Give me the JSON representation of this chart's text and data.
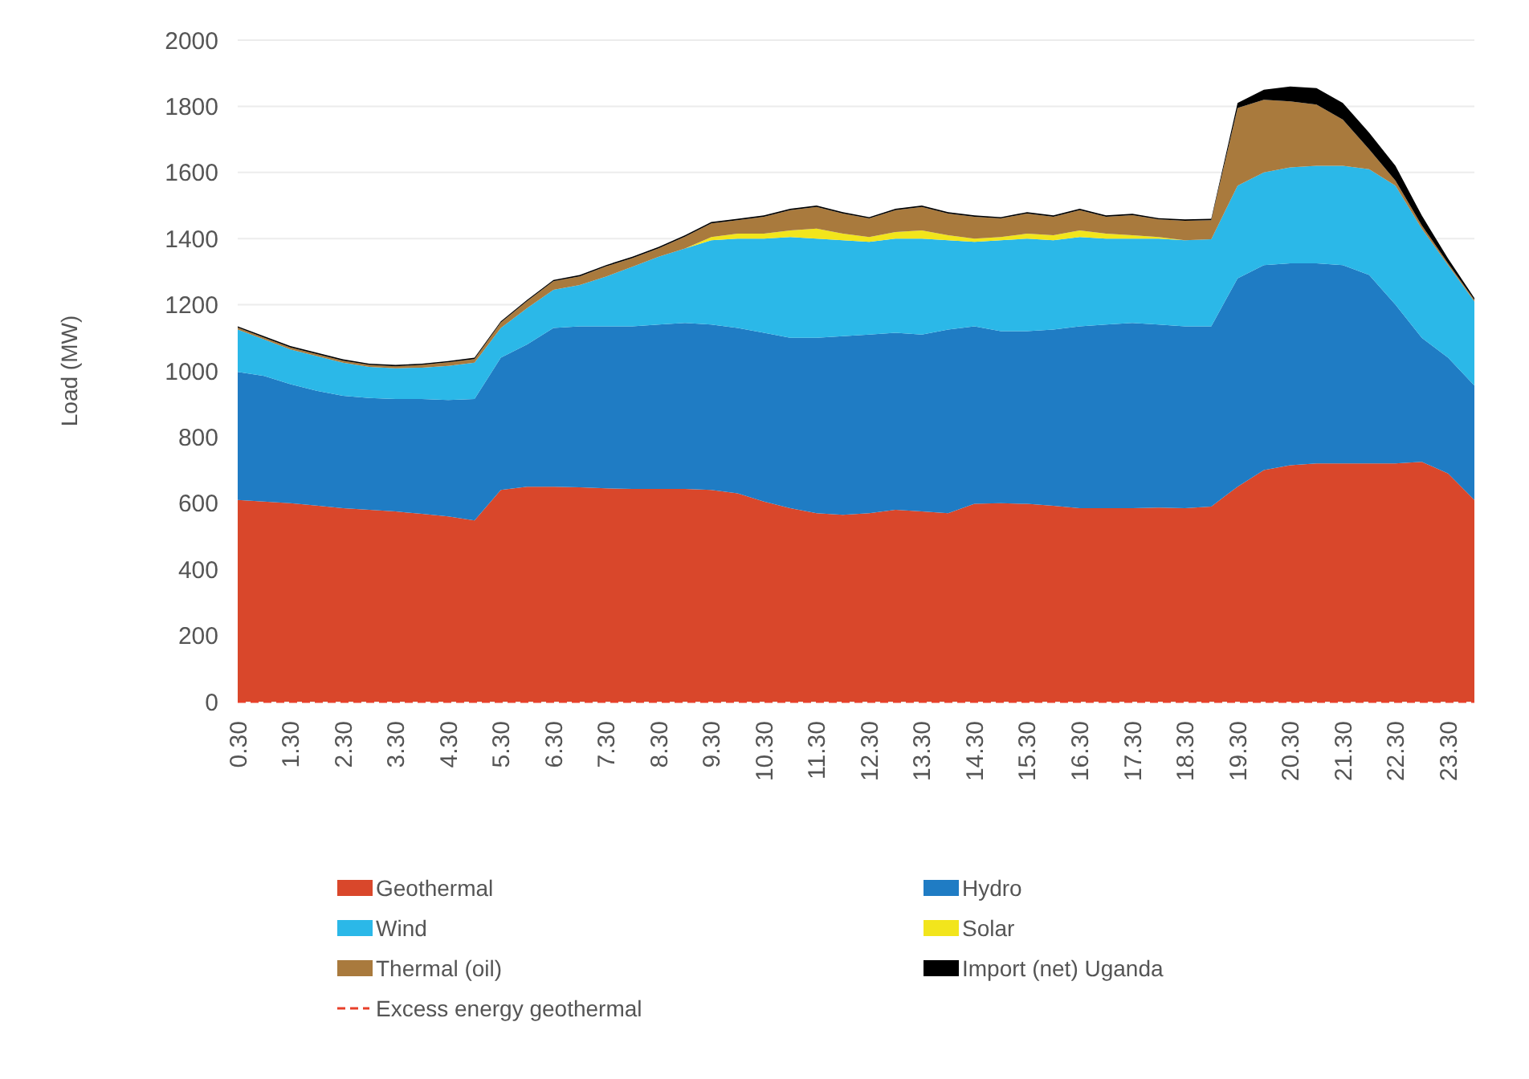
{
  "chart_data": {
    "type": "area",
    "stacked": true,
    "ylabel": "Load (MW)",
    "categories": [
      "0.30",
      null,
      "1.30",
      null,
      "2.30",
      null,
      "3.30",
      null,
      "4.30",
      null,
      "5.30",
      null,
      "6.30",
      null,
      "7.30",
      null,
      "8.30",
      null,
      "9.30",
      null,
      "10.30",
      null,
      "11.30",
      null,
      "12.30",
      null,
      "13.30",
      null,
      "14.30",
      null,
      "15.30",
      null,
      "16.30",
      null,
      "17.30",
      null,
      "18.30",
      null,
      "19.30",
      null,
      "20.30",
      null,
      "21.30",
      null,
      "22.30",
      null,
      "23.30",
      null
    ],
    "ylim": [
      0,
      2000
    ],
    "yticks": [
      0,
      200,
      400,
      600,
      800,
      1000,
      1200,
      1400,
      1600,
      1800,
      2000
    ],
    "grid": "y",
    "legend": "bottom",
    "series": [
      {
        "name": "Geothermal",
        "color": "#d9472b",
        "values": [
          610,
          605,
          600,
          593,
          585,
          580,
          575,
          568,
          560,
          548,
          640,
          650,
          650,
          648,
          645,
          643,
          643,
          643,
          640,
          630,
          605,
          585,
          570,
          565,
          570,
          580,
          575,
          570,
          598,
          600,
          598,
          592,
          585,
          585,
          585,
          587,
          585,
          590,
          650,
          700,
          715,
          720,
          720,
          720,
          720,
          725,
          690,
          610
        ]
      },
      {
        "name": "Hydro",
        "color": "#1f7cc4",
        "values": [
          387,
          380,
          360,
          347,
          340,
          338,
          340,
          347,
          352,
          367,
          400,
          430,
          480,
          487,
          490,
          492,
          497,
          502,
          500,
          500,
          510,
          515,
          530,
          540,
          540,
          535,
          535,
          555,
          537,
          520,
          522,
          533,
          550,
          555,
          560,
          553,
          550,
          545,
          630,
          620,
          610,
          605,
          600,
          570,
          480,
          375,
          350,
          346
        ]
      },
      {
        "name": "Wind",
        "color": "#2bb8e8",
        "values": [
          128,
          110,
          105,
          105,
          100,
          94,
          93,
          95,
          103,
          110,
          90,
          110,
          115,
          125,
          150,
          180,
          205,
          225,
          255,
          270,
          285,
          305,
          300,
          290,
          280,
          285,
          290,
          270,
          255,
          275,
          280,
          270,
          270,
          260,
          255,
          260,
          260,
          263,
          280,
          280,
          290,
          295,
          300,
          320,
          360,
          330,
          280,
          254
        ]
      },
      {
        "name": "Solar",
        "color": "#f2e51c",
        "values": [
          0,
          0,
          0,
          0,
          0,
          0,
          0,
          0,
          0,
          0,
          0,
          0,
          0,
          0,
          0,
          0,
          0,
          0,
          10,
          15,
          15,
          20,
          30,
          20,
          15,
          20,
          25,
          15,
          10,
          10,
          15,
          15,
          20,
          15,
          10,
          5,
          0,
          0,
          0,
          0,
          0,
          0,
          0,
          0,
          0,
          0,
          0,
          0
        ]
      },
      {
        "name": "Thermal (oil)",
        "color": "#a97a3d",
        "values": [
          6,
          6,
          6,
          6,
          6,
          6,
          6,
          8,
          11,
          11,
          16,
          21,
          26,
          26,
          31,
          26,
          26,
          36,
          41,
          41,
          51,
          61,
          66,
          61,
          56,
          66,
          71,
          66,
          66,
          56,
          61,
          56,
          61,
          51,
          61,
          53,
          59,
          58,
          235,
          220,
          200,
          185,
          140,
          60,
          15,
          10,
          5,
          5
        ]
      },
      {
        "name": "Import (net) Uganda",
        "color": "#000000",
        "values": [
          4,
          4,
          4,
          4,
          4,
          4,
          4,
          4,
          4,
          4,
          4,
          4,
          4,
          4,
          4,
          4,
          4,
          4,
          4,
          4,
          4,
          4,
          4,
          4,
          4,
          4,
          4,
          4,
          4,
          4,
          4,
          4,
          4,
          4,
          4,
          4,
          4,
          4,
          15,
          30,
          45,
          50,
          50,
          50,
          45,
          30,
          15,
          5
        ]
      },
      {
        "name": "Excess energy geothermal",
        "type": "line",
        "line_style": "dashed",
        "color": "#e8402a",
        "values": [
          0,
          0,
          0,
          0,
          0,
          0,
          0,
          0,
          0,
          0,
          0,
          0,
          0,
          0,
          0,
          0,
          0,
          0,
          0,
          0,
          0,
          0,
          0,
          0,
          0,
          0,
          0,
          0,
          0,
          0,
          0,
          0,
          0,
          0,
          0,
          0,
          0,
          0,
          0,
          0,
          0,
          0,
          0,
          0,
          0,
          0,
          0,
          0
        ]
      }
    ]
  }
}
